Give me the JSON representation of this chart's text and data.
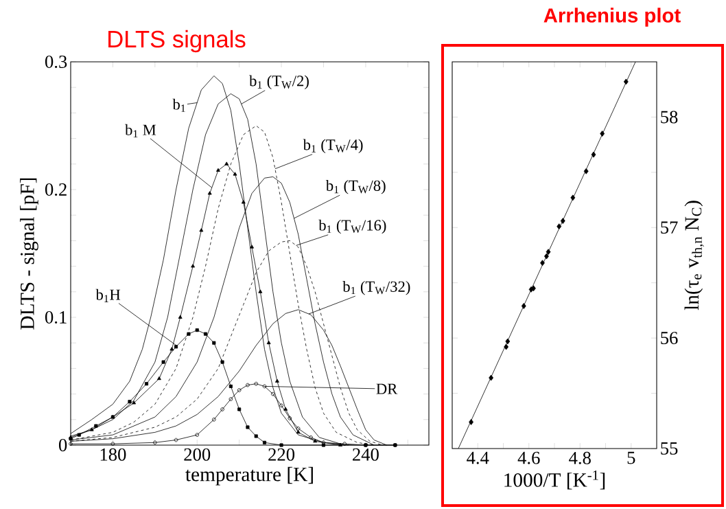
{
  "chart_data": [
    {
      "type": "line",
      "title": "DLTS signals",
      "xlabel": "temperature [K]",
      "ylabel": "DLTS - signal [pF]",
      "xlim": [
        170,
        255
      ],
      "ylim": [
        0,
        0.3
      ],
      "xticks": [
        180,
        {
          "value": 190,
          "label": null
        },
        200,
        {
          "value": 210,
          "label": null
        },
        220,
        {
          "value": 230,
          "label": null
        },
        240,
        {
          "value": 250,
          "label": null
        }
      ],
      "yticks": [
        0,
        {
          "value": 0.02,
          "label": null
        },
        {
          "value": 0.04,
          "label": null
        },
        {
          "value": 0.06,
          "label": null
        },
        {
          "value": 0.08,
          "label": null
        },
        0.1,
        {
          "value": 0.12,
          "label": null
        },
        {
          "value": 0.14,
          "label": null
        },
        {
          "value": 0.16,
          "label": null
        },
        {
          "value": 0.18,
          "label": null
        },
        0.2,
        {
          "value": 0.22,
          "label": null
        },
        {
          "value": 0.24,
          "label": null
        },
        {
          "value": 0.26,
          "label": null
        },
        {
          "value": 0.28,
          "label": null
        },
        0.3
      ],
      "series": [
        {
          "name": "b$_{1}$",
          "color": "#000000",
          "line_style": "solid",
          "marker": "none",
          "x": [
            170,
            175,
            180,
            184,
            187,
            189,
            192,
            195,
            198,
            201,
            204,
            206,
            208,
            210,
            212,
            214,
            216,
            218,
            220,
            224,
            230,
            236
          ],
          "values": [
            0.009,
            0.02,
            0.032,
            0.05,
            0.075,
            0.1,
            0.145,
            0.2,
            0.248,
            0.278,
            0.289,
            0.283,
            0.262,
            0.22,
            0.17,
            0.12,
            0.075,
            0.045,
            0.025,
            0.008,
            0.002,
            0
          ]
        },
        {
          "name": "b$_{1}$ (T$_{W}$/2)",
          "color": "#000000",
          "line_style": "solid",
          "marker": "none",
          "x": [
            170,
            175,
            180,
            185,
            190,
            193,
            196,
            199,
            202,
            205,
            208,
            210,
            212,
            214,
            216,
            218,
            220,
            222,
            225,
            229,
            235
          ],
          "values": [
            0.007,
            0.012,
            0.02,
            0.035,
            0.065,
            0.1,
            0.15,
            0.2,
            0.243,
            0.267,
            0.275,
            0.271,
            0.255,
            0.22,
            0.17,
            0.12,
            0.08,
            0.05,
            0.022,
            0.006,
            0
          ]
        },
        {
          "name": "b$_{1}$ (T$_{W}$/4)",
          "color": "#000000",
          "line_style": "dashed",
          "marker": "none",
          "x": [
            170,
            180,
            185,
            190,
            195,
            199,
            202,
            205,
            208,
            211,
            214,
            216,
            218,
            220,
            222,
            224,
            226,
            228,
            230,
            233,
            238,
            242
          ],
          "values": [
            0.004,
            0.01,
            0.018,
            0.032,
            0.06,
            0.1,
            0.14,
            0.185,
            0.22,
            0.243,
            0.25,
            0.245,
            0.225,
            0.19,
            0.15,
            0.11,
            0.075,
            0.045,
            0.025,
            0.01,
            0.002,
            0
          ]
        },
        {
          "name": "b$_{1}$ (T$_{W}$/8)",
          "color": "#000000",
          "line_style": "solid",
          "marker": "none",
          "x": [
            170,
            180,
            190,
            195,
            200,
            204,
            207,
            210,
            213,
            216,
            218,
            220,
            222,
            224,
            226,
            228,
            230,
            232,
            234,
            237,
            242
          ],
          "values": [
            0.004,
            0.008,
            0.022,
            0.038,
            0.065,
            0.1,
            0.135,
            0.17,
            0.197,
            0.209,
            0.21,
            0.205,
            0.19,
            0.165,
            0.13,
            0.095,
            0.065,
            0.04,
            0.022,
            0.008,
            0
          ]
        },
        {
          "name": "b$_{1}$ (T$_{W}$/16)",
          "color": "#000000",
          "line_style": "dashed",
          "marker": "none",
          "x": [
            170,
            180,
            190,
            195,
            200,
            205,
            208,
            211,
            214,
            217,
            220,
            222,
            224,
            226,
            228,
            230,
            232,
            234,
            236,
            238,
            241,
            244
          ],
          "values": [
            0.003,
            0.006,
            0.014,
            0.022,
            0.036,
            0.06,
            0.085,
            0.11,
            0.135,
            0.152,
            0.159,
            0.16,
            0.155,
            0.14,
            0.12,
            0.095,
            0.07,
            0.045,
            0.025,
            0.012,
            0.003,
            0
          ]
        },
        {
          "name": "b$_{1}$ (T$_{W}$/32)",
          "color": "#000000",
          "line_style": "solid",
          "marker": "none",
          "x": [
            170,
            180,
            190,
            195,
            200,
            205,
            210,
            214,
            218,
            221,
            224,
            227,
            230,
            232,
            234,
            236,
            238,
            240,
            242,
            245
          ],
          "values": [
            0.003,
            0.005,
            0.01,
            0.015,
            0.024,
            0.038,
            0.058,
            0.078,
            0.095,
            0.103,
            0.106,
            0.102,
            0.09,
            0.078,
            0.062,
            0.045,
            0.028,
            0.012,
            0.004,
            0
          ]
        },
        {
          "name": "b$_{1}$ M",
          "color": "#000000",
          "line_style": "solid",
          "marker": "triangle",
          "x": [
            170,
            175,
            180,
            185,
            191,
            194,
            196,
            199,
            201,
            203,
            205,
            207,
            209,
            211,
            213,
            215,
            217,
            219,
            221,
            224,
            228,
            234
          ],
          "values": [
            0.006,
            0.012,
            0.022,
            0.033,
            0.052,
            0.075,
            0.1,
            0.14,
            0.168,
            0.197,
            0.215,
            0.22,
            0.212,
            0.19,
            0.155,
            0.12,
            0.08,
            0.05,
            0.028,
            0.01,
            0.003,
            0
          ]
        },
        {
          "name": "b$_{1}$H",
          "color": "#000000",
          "line_style": "solid",
          "marker": "square",
          "x": [
            170,
            172,
            176,
            180,
            184,
            188,
            192,
            195,
            198,
            200,
            202,
            204,
            206,
            208,
            210,
            212,
            214,
            216,
            220,
            230,
            240,
            247
          ],
          "values": [
            0.005,
            0.008,
            0.015,
            0.022,
            0.034,
            0.048,
            0.065,
            0.077,
            0.087,
            0.09,
            0.087,
            0.08,
            0.065,
            0.046,
            0.028,
            0.014,
            0.007,
            0.002,
            0,
            0,
            0,
            0
          ]
        },
        {
          "name": "DR",
          "color": "#000000",
          "line_style": "solid",
          "marker": "circle",
          "x": [
            170,
            180,
            190,
            195,
            200,
            204,
            206,
            208,
            210,
            212,
            214,
            216,
            218,
            220,
            222,
            224,
            227,
            230,
            235,
            240,
            247
          ],
          "values": [
            0.001,
            0.001,
            0.002,
            0.004,
            0.008,
            0.02,
            0.028,
            0.036,
            0.043,
            0.047,
            0.048,
            0.046,
            0.04,
            0.031,
            0.021,
            0.013,
            0.006,
            0.002,
            0.001,
            0,
            0
          ]
        }
      ]
    },
    {
      "type": "scatter",
      "title": "Arrhenius plot",
      "xlabel": "1000/T [K$^{-1}$]",
      "ylabel": "ln(τ$_{e}$ v$_{th,n}$ N$_{C}$)",
      "xlim": [
        4.3,
        5.1
      ],
      "ylim": [
        55,
        58.5
      ],
      "xticks": [
        4.4,
        {
          "value": 4.5,
          "label": null
        },
        4.6,
        {
          "value": 4.7,
          "label": null
        },
        4.8,
        {
          "value": 4.9,
          "label": null
        },
        5
      ],
      "yticks": [
        55,
        {
          "value": 55.5,
          "label": null
        },
        56,
        {
          "value": 56.5,
          "label": null
        },
        57,
        {
          "value": 57.5,
          "label": null
        },
        58
      ],
      "series": [
        {
          "color": "#000000",
          "marker": "diamond",
          "x": [
            4.374,
            4.452,
            4.511,
            4.517,
            4.58,
            4.609,
            4.618,
            4.653,
            4.669,
            4.676,
            4.718,
            4.733,
            4.772,
            4.824,
            4.853,
            4.887,
            4.98
          ],
          "values": [
            55.24,
            55.64,
            55.92,
            55.97,
            56.29,
            56.44,
            56.45,
            56.68,
            56.74,
            56.78,
            57.01,
            57.06,
            57.27,
            57.51,
            57.66,
            57.85,
            58.32
          ]
        },
        {
          "type": "line",
          "color": "#000000",
          "marker": "none",
          "line_style": "solid",
          "x": [
            4.324,
            5.017
          ],
          "values": [
            55,
            58.5
          ]
        }
      ]
    }
  ]
}
